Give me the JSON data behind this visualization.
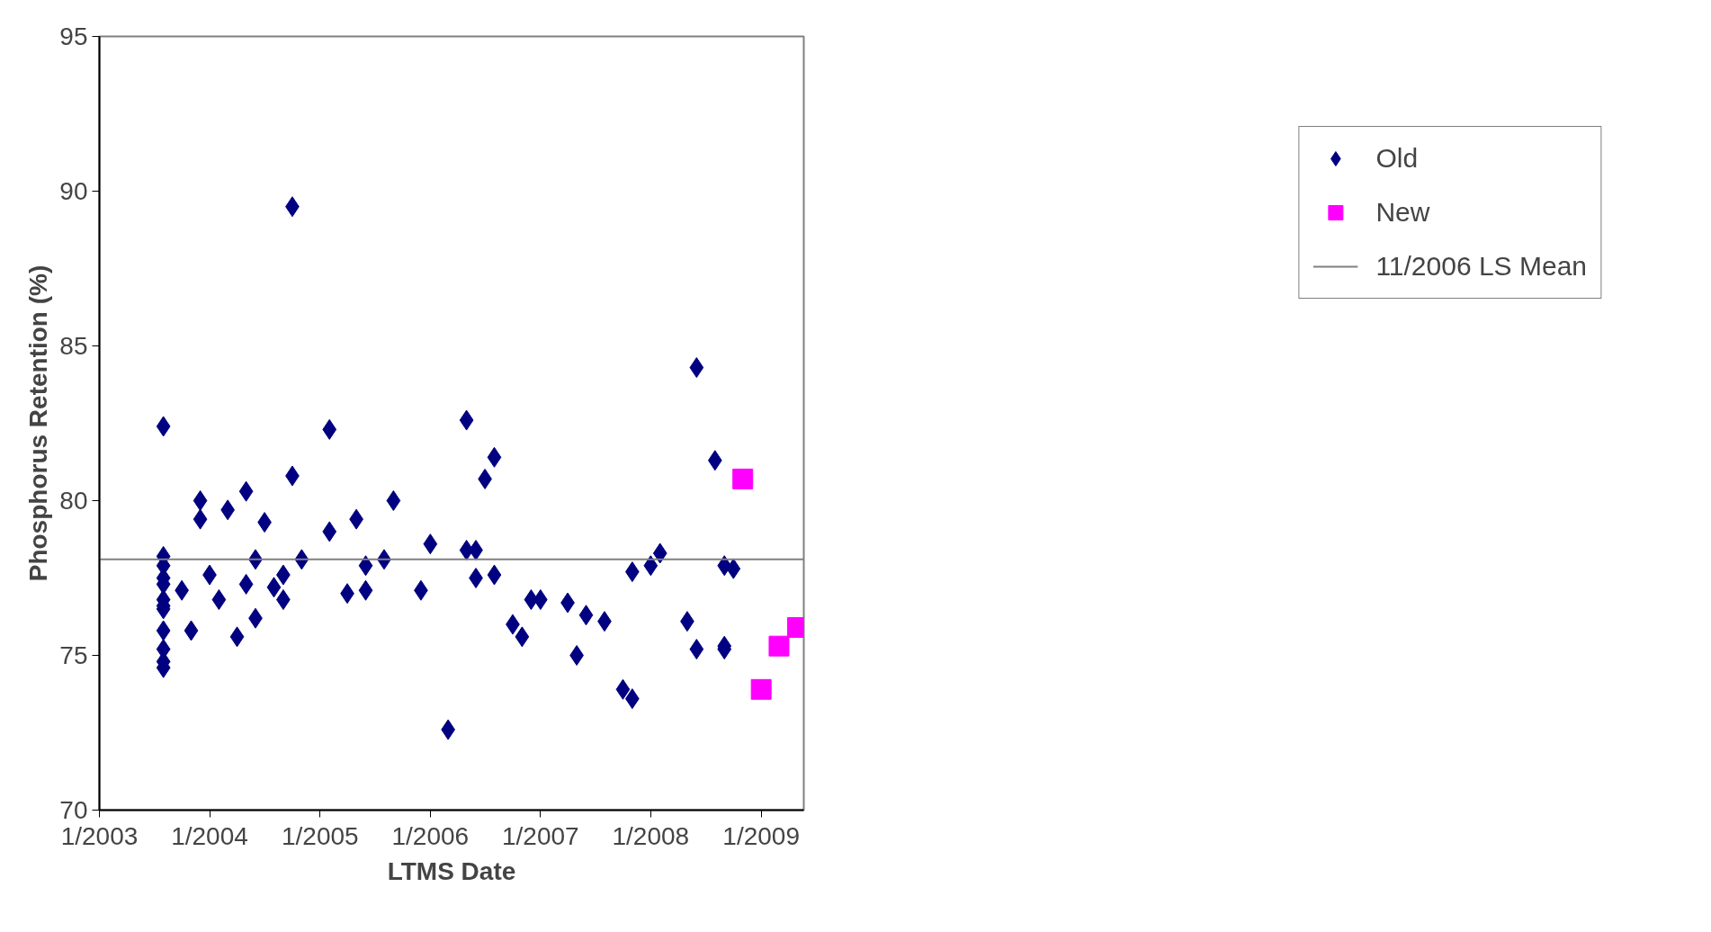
{
  "chart_data": {
    "type": "scatter",
    "xlabel": "LTMS Date",
    "ylabel": "Phosphorus Retention (%)",
    "xlim": [
      "2003-01-01",
      "2009-05-22"
    ],
    "ylim": [
      70,
      95
    ],
    "xticks": [
      {
        "value": "2003-01-01",
        "label": "1/2003"
      },
      {
        "value": "2004-01-01",
        "label": "1/2004"
      },
      {
        "value": "2005-01-01",
        "label": "1/2005"
      },
      {
        "value": "2006-01-01",
        "label": "1/2006"
      },
      {
        "value": "2007-01-01",
        "label": "1/2007"
      },
      {
        "value": "2008-01-01",
        "label": "1/2008"
      },
      {
        "value": "2009-01-01",
        "label": "1/2009"
      }
    ],
    "yticks": [
      70,
      75,
      80,
      85,
      90,
      95
    ],
    "grid": false,
    "legend": "right",
    "series": [
      {
        "name": "Old",
        "color": "#000080",
        "marker": "diamond",
        "x": [
          "2003-08",
          "2003-08",
          "2003-08",
          "2003-08",
          "2003-08",
          "2003-08",
          "2003-08",
          "2003-08",
          "2003-08",
          "2003-08",
          "2003-08",
          "2003-08",
          "2003-10",
          "2003-11",
          "2003-12",
          "2003-12",
          "2004-01",
          "2004-02",
          "2004-03",
          "2004-04",
          "2004-05",
          "2004-05",
          "2004-06",
          "2004-06",
          "2004-07",
          "2004-08",
          "2004-09",
          "2004-09",
          "2004-10",
          "2004-10",
          "2004-11",
          "2005-02",
          "2005-02",
          "2005-04",
          "2005-05",
          "2005-06",
          "2005-06",
          "2005-08",
          "2005-09",
          "2005-12",
          "2006-01",
          "2006-03",
          "2006-05",
          "2006-05",
          "2006-06",
          "2006-06",
          "2006-07",
          "2006-08",
          "2006-08",
          "2006-10",
          "2006-11",
          "2006-12",
          "2007-01",
          "2007-04",
          "2007-06",
          "2007-05",
          "2007-08",
          "2007-10",
          "2007-11",
          "2007-11",
          "2008-01",
          "2008-02",
          "2008-05",
          "2008-06",
          "2008-06",
          "2008-08",
          "2008-09",
          "2008-09",
          "2008-09",
          "2008-10"
        ],
        "values": [
          82.4,
          78.2,
          77.9,
          77.5,
          77.3,
          76.8,
          76.6,
          76.5,
          75.8,
          75.2,
          74.8,
          74.6,
          77.1,
          75.8,
          80.0,
          79.4,
          77.6,
          76.8,
          79.7,
          75.6,
          80.3,
          77.3,
          76.2,
          78.1,
          79.3,
          77.2,
          77.6,
          76.8,
          80.8,
          89.5,
          78.1,
          79.0,
          82.3,
          77.0,
          79.4,
          77.1,
          77.9,
          78.1,
          80.0,
          77.1,
          78.6,
          72.6,
          82.6,
          78.4,
          78.4,
          77.5,
          80.7,
          81.4,
          77.6,
          76.0,
          75.6,
          76.8,
          76.8,
          76.7,
          76.3,
          75.0,
          76.1,
          73.9,
          77.7,
          73.6,
          77.9,
          78.3,
          76.1,
          84.3,
          75.2,
          81.3,
          77.9,
          75.2,
          75.3,
          77.8
        ]
      },
      {
        "name": "New",
        "color": "#ff00ff",
        "marker": "square",
        "x": [
          "2008-11",
          "2009-01",
          "2009-03",
          "2009-05"
        ],
        "values": [
          80.7,
          73.9,
          75.3,
          75.9
        ]
      }
    ],
    "ref_lines": [
      {
        "axis": "y",
        "value": 78.1,
        "label": "11/2006 LS Mean",
        "color": "#808080",
        "line_style": "solid"
      }
    ]
  }
}
